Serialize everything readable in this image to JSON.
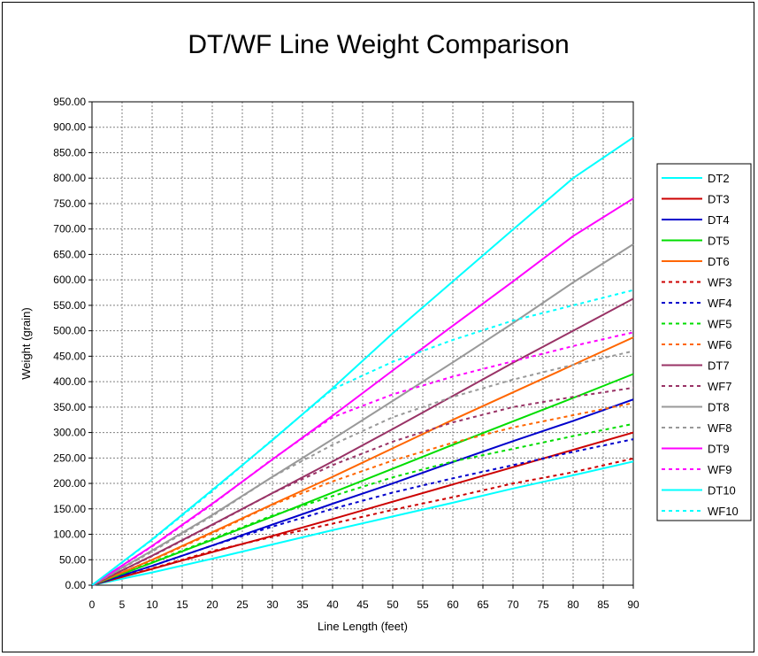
{
  "chart_data": {
    "type": "line",
    "title": "DT/WF Line Weight Comparison",
    "xlabel": "Line Length (feet)",
    "ylabel": "Weight (grain)",
    "xlim": [
      0,
      90
    ],
    "ylim": [
      0,
      950
    ],
    "x_ticks": [
      0,
      5,
      10,
      15,
      20,
      25,
      30,
      35,
      40,
      45,
      50,
      55,
      60,
      65,
      70,
      75,
      80,
      85,
      90
    ],
    "y_ticks": [
      "0.00",
      "50.00",
      "100.00",
      "150.00",
      "200.00",
      "250.00",
      "300.00",
      "350.00",
      "400.00",
      "450.00",
      "500.00",
      "550.00",
      "600.00",
      "650.00",
      "700.00",
      "750.00",
      "800.00",
      "850.00",
      "900.00",
      "950.00"
    ],
    "grid": true,
    "legend_position": "right",
    "series": [
      {
        "name": "DT2",
        "color": "#00ffff",
        "dash": false,
        "x": [
          0,
          10,
          20,
          30,
          40,
          50,
          60,
          70,
          80,
          90
        ],
        "values": [
          0,
          25,
          52,
          80,
          108,
          135,
          162,
          190,
          216,
          243
        ]
      },
      {
        "name": "DT3",
        "color": "#cc0000",
        "dash": false,
        "x": [
          0,
          10,
          20,
          30,
          40,
          50,
          60,
          70,
          80,
          90
        ],
        "values": [
          0,
          32,
          65,
          97,
          130,
          164,
          198,
          232,
          266,
          300
        ]
      },
      {
        "name": "DT4",
        "color": "#0000cc",
        "dash": false,
        "x": [
          0,
          10,
          20,
          30,
          40,
          50,
          60,
          70,
          80,
          90
        ],
        "values": [
          0,
          38,
          78,
          119,
          160,
          200,
          242,
          283,
          323,
          365
        ]
      },
      {
        "name": "DT5",
        "color": "#00dd00",
        "dash": false,
        "x": [
          0,
          10,
          20,
          30,
          40,
          50,
          60,
          70,
          80,
          90
        ],
        "values": [
          0,
          44,
          89,
          135,
          182,
          229,
          276,
          322,
          368,
          415
        ]
      },
      {
        "name": "DT6",
        "color": "#ff6600",
        "dash": false,
        "x": [
          0,
          10,
          20,
          30,
          40,
          50,
          60,
          70,
          80,
          90
        ],
        "values": [
          0,
          50,
          104,
          159,
          213,
          269,
          325,
          379,
          433,
          487
        ]
      },
      {
        "name": "WF3",
        "color": "#cc0000",
        "dash": true,
        "x": [
          0,
          10,
          20,
          30,
          40,
          50,
          60,
          70,
          80,
          90
        ],
        "values": [
          0,
          33,
          67,
          95,
          121,
          148,
          173,
          200,
          222,
          249
        ]
      },
      {
        "name": "WF4",
        "color": "#0000cc",
        "dash": true,
        "x": [
          0,
          10,
          20,
          30,
          40,
          50,
          60,
          70,
          80,
          90
        ],
        "values": [
          0,
          38,
          78,
          115,
          150,
          182,
          210,
          236,
          262,
          287
        ]
      },
      {
        "name": "WF5",
        "color": "#00dd00",
        "dash": true,
        "x": [
          0,
          10,
          20,
          30,
          40,
          50,
          60,
          70,
          80,
          90
        ],
        "values": [
          0,
          45,
          91,
          137,
          175,
          212,
          243,
          268,
          293,
          317
        ]
      },
      {
        "name": "WF6",
        "color": "#ff6600",
        "dash": true,
        "x": [
          0,
          10,
          20,
          30,
          40,
          50,
          60,
          70,
          80,
          90
        ],
        "values": [
          0,
          49,
          102,
          158,
          204,
          245,
          280,
          310,
          334,
          358
        ]
      },
      {
        "name": "DT7",
        "color": "#993366",
        "dash": false,
        "x": [
          0,
          10,
          20,
          30,
          40,
          50,
          60,
          70,
          80,
          90
        ],
        "values": [
          0,
          58,
          119,
          181,
          243,
          307,
          372,
          437,
          500,
          563
        ]
      },
      {
        "name": "WF7",
        "color": "#993366",
        "dash": true,
        "x": [
          0,
          10,
          20,
          30,
          40,
          50,
          60,
          70,
          80,
          90
        ],
        "values": [
          0,
          57,
          118,
          181,
          236,
          282,
          320,
          350,
          370,
          388
        ]
      },
      {
        "name": "DT8",
        "color": "#999999",
        "dash": false,
        "x": [
          0,
          10,
          20,
          30,
          40,
          50,
          60,
          70,
          80,
          90
        ],
        "values": [
          0,
          68,
          138,
          213,
          287,
          362,
          438,
          515,
          595,
          670
        ]
      },
      {
        "name": "WF8",
        "color": "#999999",
        "dash": true,
        "x": [
          0,
          10,
          20,
          30,
          40,
          50,
          60,
          70,
          80,
          90
        ],
        "values": [
          0,
          66,
          136,
          213,
          276,
          330,
          370,
          404,
          433,
          460
        ]
      },
      {
        "name": "DT9",
        "color": "#ff00ff",
        "dash": false,
        "x": [
          0,
          10,
          20,
          30,
          40,
          50,
          60,
          70,
          80,
          90
        ],
        "values": [
          0,
          77,
          160,
          247,
          333,
          422,
          510,
          597,
          686,
          760
        ]
      },
      {
        "name": "WF9",
        "color": "#ff00ff",
        "dash": true,
        "x": [
          0,
          10,
          20,
          30,
          40,
          50,
          60,
          70,
          80,
          90
        ],
        "values": [
          0,
          76,
          159,
          248,
          330,
          375,
          410,
          440,
          470,
          497
        ]
      },
      {
        "name": "DT10",
        "color": "#00ffff",
        "dash": false,
        "x": [
          0,
          10,
          20,
          30,
          40,
          50,
          60,
          70,
          80,
          90
        ],
        "values": [
          0,
          90,
          187,
          285,
          387,
          495,
          597,
          699,
          800,
          880
        ]
      },
      {
        "name": "WF10",
        "color": "#00ffff",
        "dash": true,
        "x": [
          0,
          10,
          20,
          30,
          40,
          50,
          60,
          70,
          80,
          90
        ],
        "values": [
          0,
          89,
          185,
          286,
          385,
          439,
          482,
          520,
          550,
          580
        ]
      }
    ]
  }
}
